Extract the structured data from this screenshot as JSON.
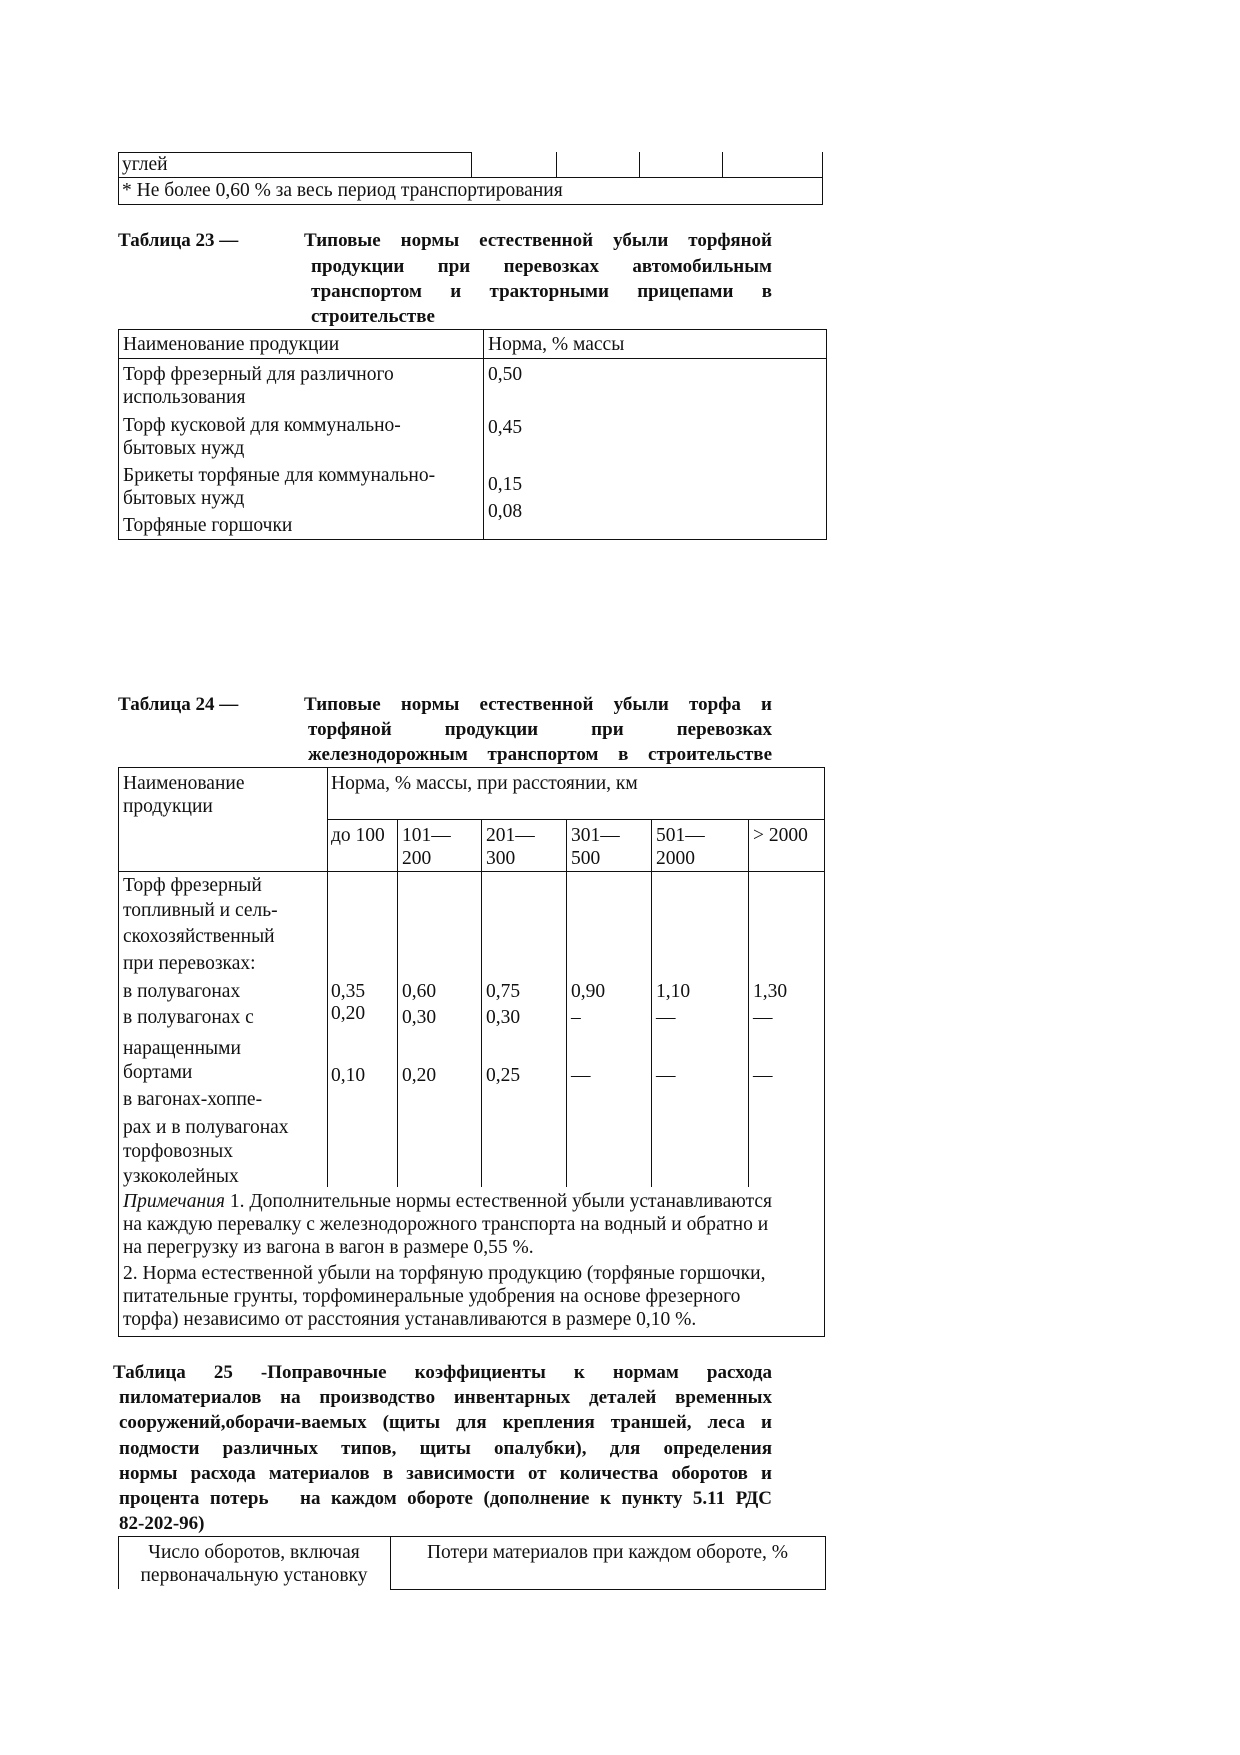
{
  "top_table": {
    "row_label": "углей",
    "footnote": "* Не более 0,60 % за весь период транспортирования"
  },
  "table23": {
    "number": "Таблица 23 —",
    "title_lines": [
      "Типовые нормы естественной убыли торфяной",
      "продукции при перевозках автомобильным",
      "транспортом и тракторными прицепами в",
      "строительстве"
    ],
    "headers": [
      "Наименование продукции",
      "Норма, % массы"
    ],
    "label_lines": [
      "Торф фрезерный для различного",
      "использования",
      "Торф кусковой для коммунально-",
      "бытовых нужд",
      "Брикеты торфяные для коммунально-",
      "бытовых нужд",
      "Торфяные горшочки"
    ],
    "values": [
      "0,50",
      "0,45",
      "0,15",
      "0,08"
    ]
  },
  "table24": {
    "number": "Таблица 24 —",
    "title_lines": [
      "Типовые нормы естественной убыли торфа и",
      "торфяной продукции при перевозках",
      "железнодорожным транспортом в строительстве"
    ],
    "header_name": [
      "Наименование",
      "продукции"
    ],
    "header_norm": "Норма, % массы, при расстоянии, км",
    "distance_headers": [
      [
        "до 100",
        ""
      ],
      [
        "101—",
        "200"
      ],
      [
        "201—",
        "300"
      ],
      [
        "301—",
        "500"
      ],
      [
        "501—",
        "2000"
      ],
      [
        "> 2000",
        ""
      ]
    ],
    "label_lines": [
      "Торф фрезерный",
      "топливный и сель-",
      "скохозяйственный",
      "при перевозках:",
      "в полувагонах",
      "в полувагонах с",
      "наращенными",
      "бортами",
      "в вагонах-хоппе-",
      "рах и в полувагонах",
      "торфовозных",
      "узкоколейных"
    ],
    "rows": [
      [
        "0,35",
        "0,60",
        "0,75",
        "0,90",
        "1,10",
        "1,30"
      ],
      [
        "0,20",
        "0,30",
        "0,30",
        "–",
        "—",
        "—"
      ],
      [
        "0,10",
        "0,20",
        "0,25",
        "—",
        "—",
        "—"
      ]
    ],
    "notes": {
      "label": "Примечания",
      "line1": " 1. Дополнительные нормы естественной убыли устанавливаются",
      "line2": "на каждую перевалку с железнодорожного транспорта на водный и обратно и",
      "line3": "на перегрузку из вагона в вагон в размере 0,55 %.",
      "line4": "2. Норма естественной убыли на торфяную продукцию (торфяные горшочки,",
      "line5": "питательные грунты, торфоминеральные удобрения на основе фрезерного",
      "line6": "торфа) независимо от расстояния устанавливаются в размере 0,10 %."
    }
  },
  "table25": {
    "title_lines": [
      "Таблица 25 -Поправочные коэффициенты к нормам расхода",
      "пиломатериалов на производство инвентарных деталей временных",
      "сооружений,оборачи-ваемых (щиты для крепления траншей, леса и",
      "подмости различных типов, щиты опалубки), для определения",
      "нормы расхода материалов в зависимости от количества оборотов и",
      "процента потерь   на каждом обороте (дополнение к пункту 5.11 РДС",
      "82-202-96)"
    ],
    "headers": [
      [
        "Число оборотов, включая",
        "первоначальную установку"
      ],
      "Потери материалов при каждом обороте, %"
    ]
  }
}
